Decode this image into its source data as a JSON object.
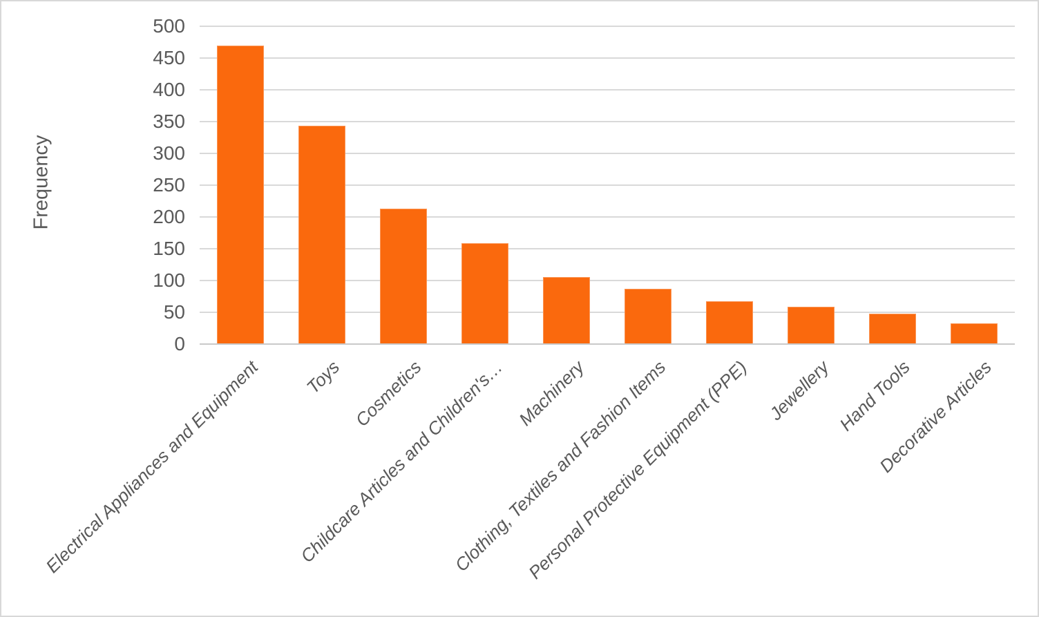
{
  "chart_data": {
    "type": "bar",
    "title": "",
    "categories": [
      "Electrical Appliances and Equipment",
      "Toys",
      "Cosmetics",
      "Childcare Articles and Children's…",
      "Machinery",
      "Clothing, Textiles and Fashion Items",
      "Personal Protective Equipment (PPE)",
      "Jewellery",
      "Hand Tools",
      "Decorative Articles"
    ],
    "values": [
      470,
      344,
      213,
      159,
      105,
      87,
      67,
      59,
      48,
      33
    ],
    "xlabel": "",
    "ylabel": "Frequency",
    "ylim": [
      0,
      500
    ],
    "ytick_step": 50,
    "ytick_labels": [
      "0",
      "50",
      "100",
      "150",
      "200",
      "250",
      "300",
      "350",
      "400",
      "450",
      "500"
    ],
    "grid": true,
    "legend": false,
    "colors": {
      "bar": "#FA690D",
      "text": "#595959",
      "gridline": "#D9D9D9",
      "axis_line": "#C9C9C9",
      "frame_border": "#D8D8D8",
      "background": "#FFFFFF"
    }
  }
}
